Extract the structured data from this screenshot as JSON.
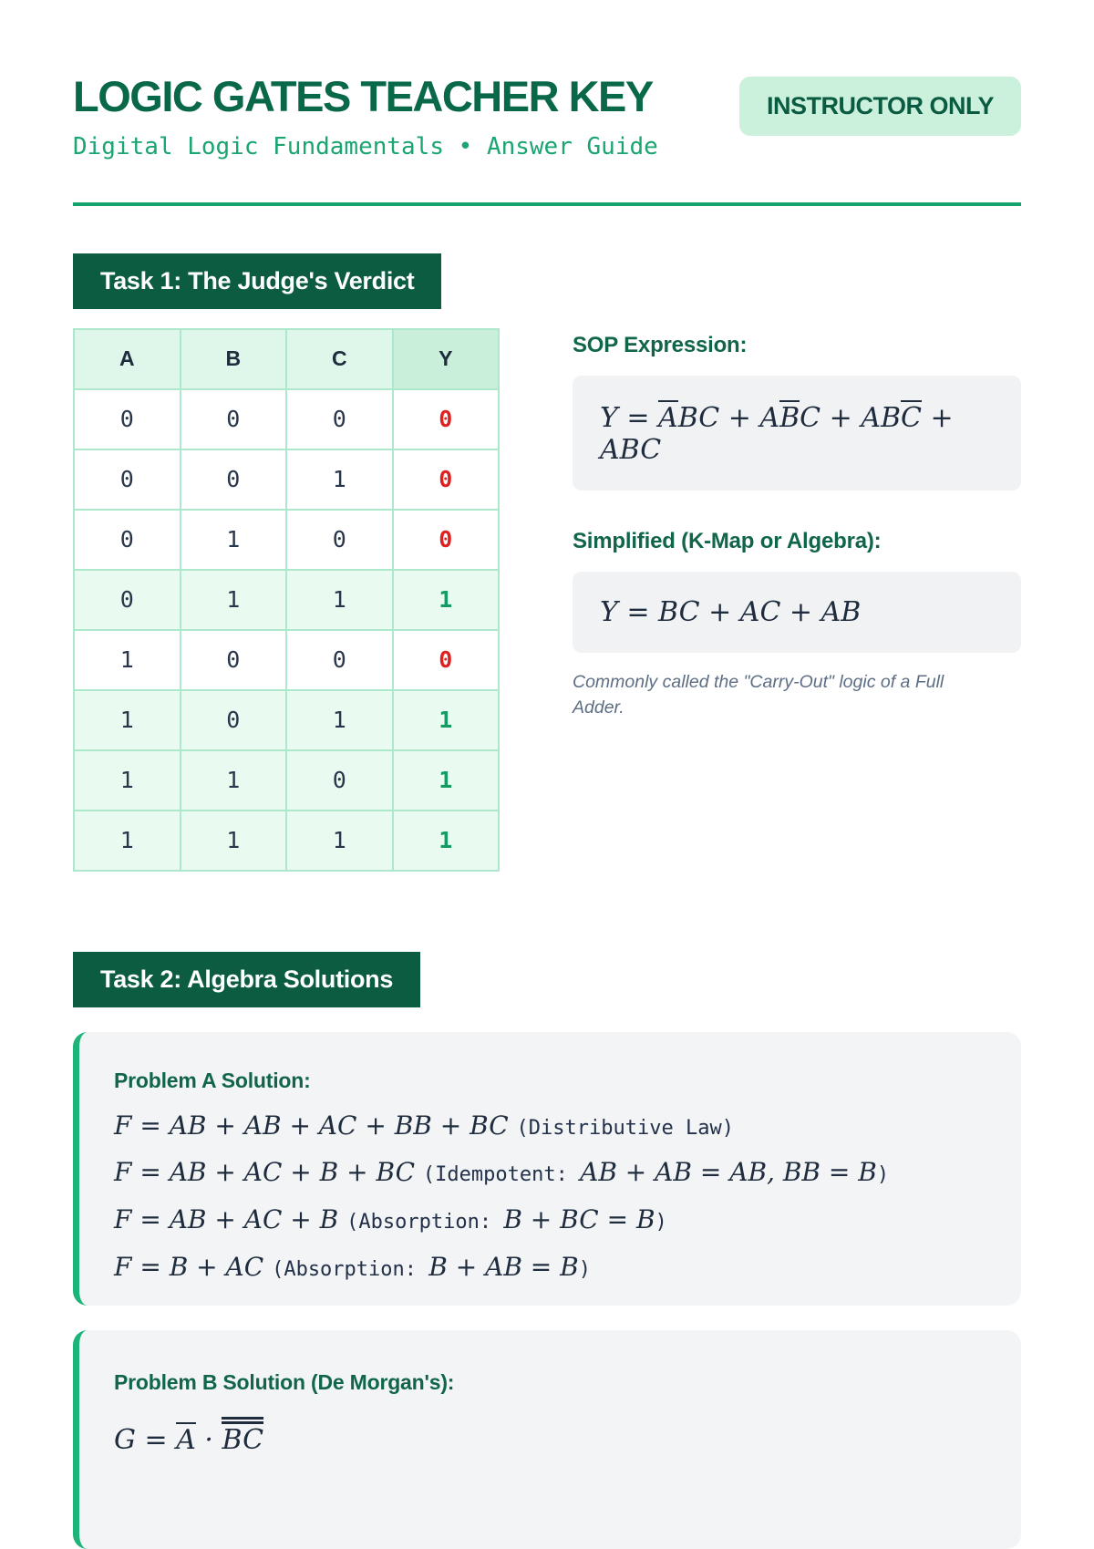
{
  "page": {
    "title": "LOGIC GATES TEACHER KEY",
    "subtitle": "Digital Logic Fundamentals • Answer Guide",
    "badge": "INSTRUCTOR ONLY"
  },
  "colors": {
    "dark_green": "#0b5c41",
    "accent_green": "#12a26c",
    "badge_bg": "#cbf1dc",
    "mint_row": "#e9fbf1",
    "value_one_green": "#149a62",
    "value_zero_red": "#e01f1f",
    "card_border_green": "#1cb478"
  },
  "task1": {
    "header": "Task 1: The Judge's Verdict",
    "table": {
      "columns": [
        "A",
        "B",
        "C",
        "Y"
      ],
      "rows": [
        {
          "a": "0",
          "b": "0",
          "c": "0",
          "y": "0",
          "highlight": false
        },
        {
          "a": "0",
          "b": "0",
          "c": "1",
          "y": "0",
          "highlight": false
        },
        {
          "a": "0",
          "b": "1",
          "c": "0",
          "y": "0",
          "highlight": false
        },
        {
          "a": "0",
          "b": "1",
          "c": "1",
          "y": "1",
          "highlight": true
        },
        {
          "a": "1",
          "b": "0",
          "c": "0",
          "y": "0",
          "highlight": false
        },
        {
          "a": "1",
          "b": "0",
          "c": "1",
          "y": "1",
          "highlight": true
        },
        {
          "a": "1",
          "b": "1",
          "c": "0",
          "y": "1",
          "highlight": true
        },
        {
          "a": "1",
          "b": "1",
          "c": "1",
          "y": "1",
          "highlight": true
        }
      ]
    },
    "sop_label": "SOP Expression:",
    "sop_formula": [
      {
        "t": "Y = ",
        "f": "math"
      },
      {
        "t": "A",
        "f": "math",
        "ol": 1
      },
      {
        "t": "BC + A",
        "f": "math"
      },
      {
        "t": "B",
        "f": "math",
        "ol": 1
      },
      {
        "t": "C + AB",
        "f": "math"
      },
      {
        "t": "C",
        "f": "math",
        "ol": 1
      },
      {
        "t": " + ABC",
        "f": "math"
      }
    ],
    "simplified_label": "Simplified (K-Map or Algebra):",
    "simplified_formula": [
      {
        "t": "Y = BC + AC + AB",
        "f": "math"
      }
    ],
    "note": "Commonly called the \"Carry-Out\" logic of a Full Adder."
  },
  "task2": {
    "header": "Task 2: Algebra Solutions",
    "problem_a": {
      "title": "Problem A Solution:",
      "lines": [
        [
          {
            "t": "F = AB + AB + AC + BB + BC ",
            "f": "math"
          },
          {
            "t": "(Distributive Law)",
            "f": "mono"
          }
        ],
        [
          {
            "t": "F = AB + AC + B + BC ",
            "f": "math"
          },
          {
            "t": "(Idempotent: ",
            "f": "mono"
          },
          {
            "t": "AB + AB = AB, BB = B",
            "f": "math"
          },
          {
            "t": ")",
            "f": "mono"
          }
        ],
        [
          {
            "t": "F = AB + AC + B ",
            "f": "math"
          },
          {
            "t": "(Absorption: ",
            "f": "mono"
          },
          {
            "t": "B + BC = B",
            "f": "math"
          },
          {
            "t": ")",
            "f": "mono"
          }
        ],
        [
          {
            "t": "F = B + AC ",
            "f": "math"
          },
          {
            "t": "(Absorption: ",
            "f": "mono"
          },
          {
            "t": "B + AB = B",
            "f": "math"
          },
          {
            "t": ")",
            "f": "mono"
          }
        ]
      ]
    },
    "problem_b": {
      "title": "Problem B Solution (De Morgan's):",
      "lines": [
        [
          {
            "t": "G = ",
            "f": "math"
          },
          {
            "t": "A",
            "f": "math",
            "ol": 1
          },
          {
            "t": " · ",
            "f": "math"
          },
          {
            "t": "BC",
            "f": "math",
            "ol": 2
          }
        ]
      ]
    }
  }
}
